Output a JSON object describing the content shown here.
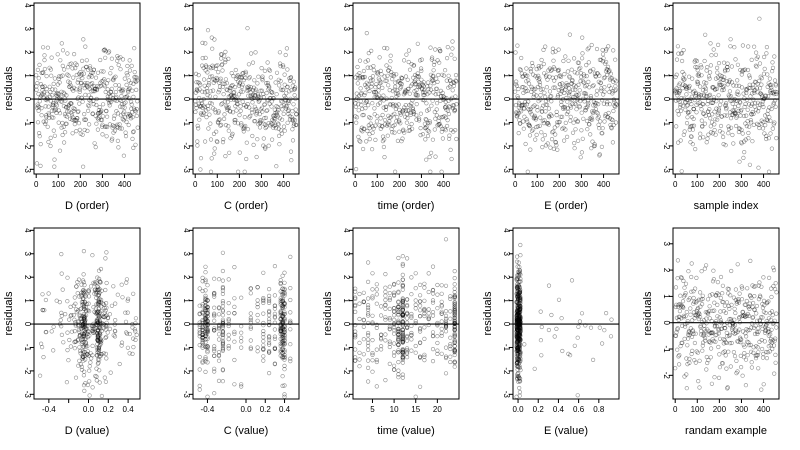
{
  "figure": {
    "title": ""
  },
  "chart_data": [
    {
      "id": "d-order",
      "type": "scatter",
      "xlabel": "D (order)",
      "ylabel": "residuals",
      "xlim": [
        -10,
        470
      ],
      "ylim": [
        -3.2,
        4.1
      ],
      "xticks": [
        0,
        100,
        200,
        300,
        400
      ],
      "xtick_labels": [
        "0",
        "100",
        "200",
        "300",
        "400"
      ],
      "yticks": [
        -3,
        -2,
        -1,
        0,
        1,
        2,
        3,
        4
      ],
      "ytick_labels": [
        "-3",
        "-2",
        "-1",
        "0",
        "1",
        "2",
        "3",
        "4"
      ],
      "hline": 0,
      "n_points": 460,
      "points_note": "~460 points spread uniformly over x 0–460; residuals roughly N(0, 1), mostly within ±2.5"
    },
    {
      "id": "c-order",
      "type": "scatter",
      "xlabel": "C (order)",
      "ylabel": "residuals",
      "xlim": [
        -10,
        470
      ],
      "ylim": [
        -3.2,
        4.1
      ],
      "xticks": [
        0,
        100,
        200,
        300,
        400
      ],
      "xtick_labels": [
        "0",
        "100",
        "200",
        "300",
        "400"
      ],
      "yticks": [
        -3,
        -2,
        -1,
        0,
        1,
        2,
        3,
        4
      ],
      "ytick_labels": [
        "-3",
        "-2",
        "-1",
        "0",
        "1",
        "2",
        "3",
        "4"
      ],
      "hline": 0,
      "n_points": 460,
      "points_note": "same residuals reordered by C; uniform spread over x 0–460"
    },
    {
      "id": "time-order",
      "type": "scatter",
      "xlabel": "time (order)",
      "ylabel": "residuals",
      "xlim": [
        -10,
        470
      ],
      "ylim": [
        -3.2,
        4.1
      ],
      "xticks": [
        0,
        100,
        200,
        300,
        400
      ],
      "xtick_labels": [
        "0",
        "100",
        "200",
        "300",
        "400"
      ],
      "yticks": [
        -3,
        -2,
        -1,
        0,
        1,
        2,
        3,
        4
      ],
      "ytick_labels": [
        "-3",
        "-2",
        "-1",
        "0",
        "1",
        "2",
        "3",
        "4"
      ],
      "hline": 0,
      "n_points": 460,
      "points_note": "same residuals reordered by time; uniform spread over x 0–460"
    },
    {
      "id": "e-order",
      "type": "scatter",
      "xlabel": "E (order)",
      "ylabel": "residuals",
      "xlim": [
        -10,
        470
      ],
      "ylim": [
        -3.2,
        4.1
      ],
      "xticks": [
        0,
        100,
        200,
        300,
        400
      ],
      "xtick_labels": [
        "0",
        "100",
        "200",
        "300",
        "400"
      ],
      "yticks": [
        -3,
        -2,
        -1,
        0,
        1,
        2,
        3,
        4
      ],
      "ytick_labels": [
        "-3",
        "-2",
        "-1",
        "0",
        "1",
        "2",
        "3",
        "4"
      ],
      "hline": 0,
      "n_points": 460,
      "points_note": "same residuals reordered by E; uniform spread over x 0–460"
    },
    {
      "id": "sample-index",
      "type": "scatter",
      "xlabel": "sample index",
      "ylabel": "residuals",
      "xlim": [
        -10,
        470
      ],
      "ylim": [
        -3.2,
        4.1
      ],
      "xticks": [
        0,
        100,
        200,
        300,
        400
      ],
      "xtick_labels": [
        "0",
        "100",
        "200",
        "300",
        "400"
      ],
      "yticks": [
        -3,
        -2,
        -1,
        0,
        1,
        2,
        3,
        4
      ],
      "ytick_labels": [
        "-3",
        "-2",
        "-1",
        "0",
        "1",
        "2",
        "3",
        "4"
      ],
      "hline": 0,
      "n_points": 460,
      "points_note": "residuals in sample order; uniform spread over x 0–460"
    },
    {
      "id": "d-value",
      "type": "scatter",
      "xlabel": "D (value)",
      "ylabel": "residuals",
      "xlim": [
        -0.55,
        0.52
      ],
      "ylim": [
        -3.2,
        4.1
      ],
      "xticks": [
        -0.4,
        -0.2,
        0.0,
        0.2,
        0.4
      ],
      "xtick_labels": [
        "-0.4",
        "",
        "0.0",
        "0.2",
        "0.4"
      ],
      "yticks": [
        -3,
        -2,
        -1,
        0,
        1,
        2,
        3,
        4
      ],
      "ytick_labels": [
        "-3",
        "-2",
        "-1",
        "0",
        "1",
        "2",
        "3",
        "4"
      ],
      "hline": 0,
      "n_points": 460,
      "points_note": "D values spread over -0.5–0.5, denser near -0.1–0.15 with vertical clusters around -0.05 and 0.1"
    },
    {
      "id": "c-value",
      "type": "scatter",
      "xlabel": "C (value)",
      "ylabel": "residuals",
      "xlim": [
        -0.55,
        0.55
      ],
      "ylim": [
        -3.2,
        4.1
      ],
      "xticks": [
        -0.4,
        0.0,
        0.2,
        0.4
      ],
      "xtick_labels": [
        "-0.4",
        "0.0",
        "0.2",
        "0.4"
      ],
      "yticks": [
        -3,
        -2,
        -1,
        0,
        1,
        2,
        3,
        4
      ],
      "ytick_labels": [
        "-3",
        "-2",
        "-1",
        "0",
        "1",
        "2",
        "3",
        "4"
      ],
      "hline": 0,
      "n_points": 460,
      "points_note": "C takes discrete values forming vertical stripes, heaviest near -0.42 and 0.37"
    },
    {
      "id": "time-value",
      "type": "scatter",
      "xlabel": "time (value)",
      "ylabel": "residuals",
      "xlim": [
        0.5,
        25
      ],
      "ylim": [
        -3.2,
        4.1
      ],
      "xticks": [
        5,
        10,
        15,
        20
      ],
      "xtick_labels": [
        "5",
        "10",
        "15",
        "20"
      ],
      "yticks": [
        -3,
        -2,
        -1,
        0,
        1,
        2,
        3,
        4
      ],
      "ytick_labels": [
        "-3",
        "-2",
        "-1",
        "0",
        "1",
        "2",
        "3",
        "4"
      ],
      "hline": 0,
      "n_points": 460,
      "points_note": "integer time values 1–24 forming vertical stripes, heavier near 11–12 and 24"
    },
    {
      "id": "e-value",
      "type": "scatter",
      "xlabel": "E (value)",
      "ylabel": "residuals",
      "xlim": [
        -0.05,
        1.0
      ],
      "ylim": [
        -3.2,
        4.1
      ],
      "xticks": [
        0.0,
        0.2,
        0.4,
        0.6,
        0.8
      ],
      "xtick_labels": [
        "0.0",
        "0.2",
        "0.4",
        "0.6",
        "0.8"
      ],
      "yticks": [
        -3,
        -2,
        -1,
        0,
        1,
        2,
        3,
        4
      ],
      "ytick_labels": [
        "-3",
        "-2",
        "-1",
        "0",
        "1",
        "2",
        "3",
        "4"
      ],
      "hline": 0,
      "n_points": 460,
      "points_note": "most E values near 0 forming a dense vertical band; a few sparse points spread to 0.95"
    },
    {
      "id": "random-example",
      "type": "scatter",
      "xlabel": "randam example",
      "ylabel": "residuals",
      "xlim": [
        -10,
        470
      ],
      "ylim": [
        -2.9,
        3.6
      ],
      "xticks": [
        0,
        100,
        200,
        300,
        400
      ],
      "xtick_labels": [
        "0",
        "100",
        "200",
        "300",
        "400"
      ],
      "yticks": [
        -2,
        -1,
        0,
        1,
        2,
        3
      ],
      "ytick_labels": [
        "-2",
        "-1",
        "0",
        "1",
        "2",
        "3"
      ],
      "hline": 0,
      "n_points": 460,
      "points_note": "random normal noise for comparison; uniform spread over x 0–460"
    }
  ]
}
